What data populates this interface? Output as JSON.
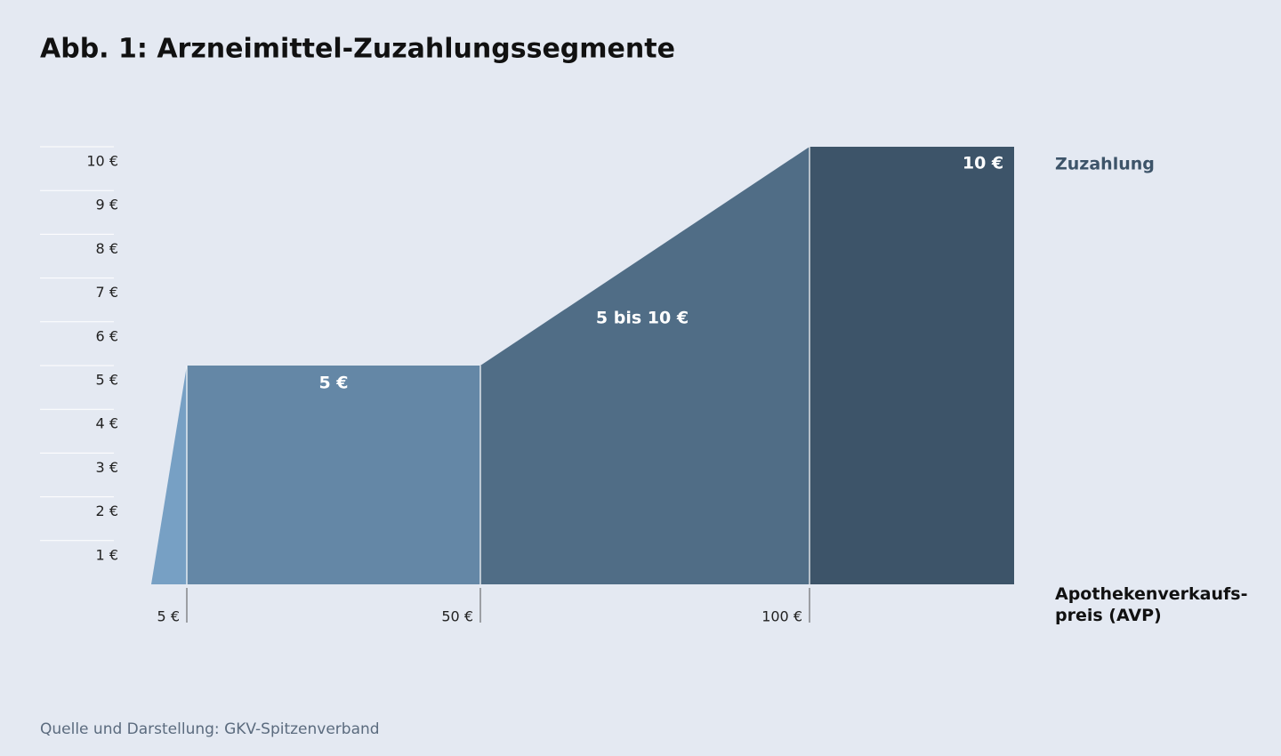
{
  "chart_data": {
    "type": "segments",
    "title": "Abb. 1: Arzneimittel-Zuzahlungssegmente",
    "y_axis_label": "Zuzahlung",
    "x_axis_label": "Apothekenverkaufs­preis (AVP)",
    "source": "Quelle und Darstellung: GKV-Spitzenverband",
    "ylim": [
      0,
      10
    ],
    "yticks": [
      {
        "value": 1,
        "label": "1 €"
      },
      {
        "value": 2,
        "label": "2 €"
      },
      {
        "value": 3,
        "label": "3 €"
      },
      {
        "value": 4,
        "label": "4 €"
      },
      {
        "value": 5,
        "label": "5 €"
      },
      {
        "value": 6,
        "label": "6 €"
      },
      {
        "value": 7,
        "label": "7 €"
      },
      {
        "value": 8,
        "label": "8 €"
      },
      {
        "value": 9,
        "label": "9 €"
      },
      {
        "value": 10,
        "label": "10 €"
      }
    ],
    "categories": [
      "5 €",
      "50 €",
      "100 €"
    ],
    "segments": [
      {
        "color": "#77a0c4",
        "values": [
          0,
          5
        ]
      },
      {
        "name": "5 €",
        "color": "#6487a6",
        "values": [
          5,
          5
        ]
      },
      {
        "name": "5 bis 10 €",
        "color": "#506d86",
        "values": [
          5,
          10
        ]
      },
      {
        "name": "10 €",
        "color": "#3d5469",
        "values": [
          10,
          10
        ]
      }
    ]
  }
}
